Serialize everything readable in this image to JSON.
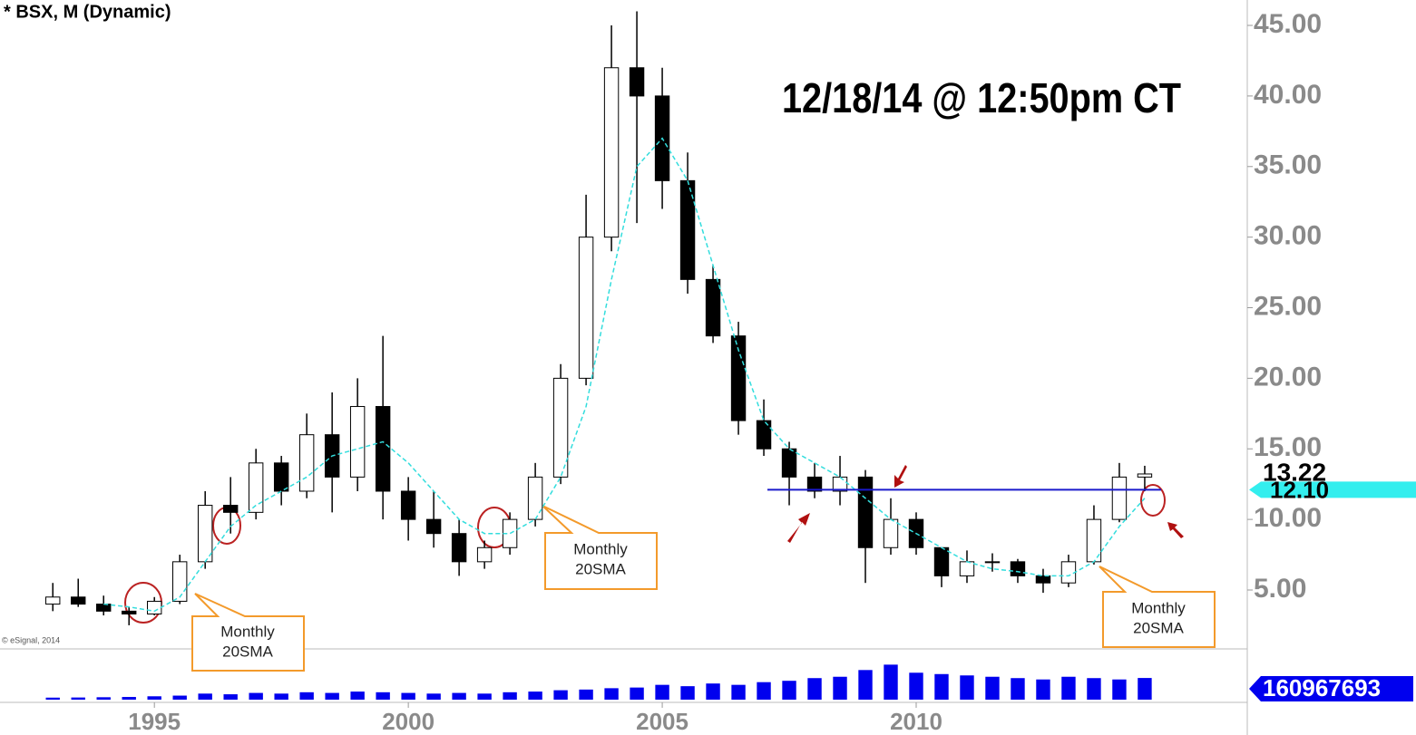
{
  "chart_data": {
    "type": "candlestick",
    "title": "* BSX, M (Dynamic)",
    "annotation": "12/18/14 @ 12:50pm CT",
    "credit": "© eSignal, 2014",
    "callouts": [
      [
        "Monthly",
        "20SMA"
      ],
      [
        "Monthly",
        "20SMA"
      ],
      [
        "Monthly",
        "20SMA"
      ]
    ],
    "x": [
      1993,
      1993.5,
      1994,
      1994.5,
      1995,
      1995.5,
      1996,
      1996.5,
      1997,
      1997.5,
      1998,
      1998.5,
      1999,
      1999.5,
      2000,
      2000.5,
      2001,
      2001.5,
      2002,
      2002.5,
      2003,
      2003.5,
      2004,
      2004.5,
      2005,
      2005.5,
      2006,
      2006.5,
      2007,
      2007.5,
      2008,
      2008.5,
      2009,
      2009.5,
      2010,
      2010.5,
      2011,
      2011.5,
      2012,
      2012.5,
      2013,
      2013.5,
      2014,
      2014.5
    ],
    "open": [
      4.0,
      4.5,
      4.0,
      3.5,
      3.3,
      4.2,
      7,
      11,
      10.5,
      14,
      12,
      16,
      13,
      18,
      12,
      10,
      9,
      7,
      8,
      10,
      13,
      20,
      30,
      42,
      40,
      34,
      27,
      23,
      17,
      15,
      13,
      12,
      13,
      8,
      10,
      8,
      6,
      7,
      7,
      6,
      5.5,
      7,
      10,
      13
    ],
    "high": [
      5.5,
      5.8,
      4.6,
      3.8,
      4.5,
      7.5,
      12,
      13,
      15,
      14.5,
      17.5,
      19,
      20,
      23,
      13,
      12,
      10,
      8.5,
      10.5,
      14,
      21,
      33,
      45,
      46,
      42,
      36,
      28,
      24,
      18.5,
      15.5,
      14,
      14.5,
      13.5,
      11.5,
      10.5,
      8,
      7.8,
      7.6,
      7.2,
      6.5,
      7.5,
      11,
      14,
      13.8
    ],
    "low": [
      3.5,
      3.8,
      3.2,
      2.5,
      3.2,
      4,
      6.5,
      9,
      10,
      11,
      11.5,
      10.5,
      12,
      10,
      8.5,
      8,
      6,
      6.5,
      7.5,
      9.5,
      12.5,
      19.5,
      29,
      31,
      32,
      26,
      22.5,
      16,
      14.5,
      11,
      11.5,
      11,
      5.5,
      7.5,
      7.5,
      5.2,
      5.5,
      6.3,
      5.5,
      4.8,
      5.2,
      6.8,
      9.8,
      12
    ],
    "close": [
      4.5,
      4.0,
      3.5,
      3.3,
      4.2,
      7,
      11,
      10.5,
      14,
      12,
      16,
      13,
      18,
      12,
      10,
      9,
      7,
      8,
      10,
      13,
      20,
      30,
      42,
      40,
      34,
      27,
      23,
      17,
      15,
      13,
      12,
      13,
      8,
      10,
      8,
      6,
      7,
      7,
      6,
      5.5,
      7,
      10,
      13,
      13.22
    ],
    "sma": {
      "color": "#33dddd",
      "values": [
        null,
        null,
        4.0,
        3.8,
        3.5,
        4.5,
        7,
        9.5,
        11,
        12,
        13,
        14.5,
        15,
        15.5,
        14,
        12,
        10,
        9,
        9,
        10,
        13,
        18,
        27,
        35,
        37,
        34,
        28,
        22,
        17,
        15,
        14,
        13,
        11.5,
        10,
        9,
        8,
        7,
        6.5,
        6.3,
        6,
        6,
        7,
        9.5,
        11.5
      ]
    },
    "support": {
      "value": 12.1,
      "label": "12.10",
      "color": "#1a1acc"
    },
    "last_price": 13.22,
    "xlim": [
      1991.96,
      2016.43
    ],
    "xticks": [
      1995,
      2000,
      2005,
      2010
    ],
    "ylim": [
      0.89,
      46.8
    ],
    "yticks": [
      {
        "value": 5,
        "label": "5.00"
      },
      {
        "value": 10,
        "label": "10.00"
      },
      {
        "value": 15,
        "label": "15.00"
      },
      {
        "value": 20,
        "label": "20.00"
      },
      {
        "value": 25,
        "label": "25.00"
      },
      {
        "value": 30,
        "label": "30.00"
      },
      {
        "value": 35,
        "label": "35.00"
      },
      {
        "value": 40,
        "label": "40.00"
      },
      {
        "value": 45,
        "label": "45.00"
      }
    ],
    "volume": {
      "color": "#0000ee",
      "ylim": [
        0,
        350000000
      ],
      "last": 160967693,
      "values": [
        15000000,
        16000000,
        18000000,
        20000000,
        25000000,
        30000000,
        45000000,
        40000000,
        50000000,
        45000000,
        55000000,
        50000000,
        60000000,
        55000000,
        50000000,
        45000000,
        50000000,
        45000000,
        55000000,
        60000000,
        70000000,
        75000000,
        85000000,
        90000000,
        110000000,
        100000000,
        120000000,
        110000000,
        130000000,
        140000000,
        160000000,
        170000000,
        220000000,
        260000000,
        200000000,
        190000000,
        180000000,
        170000000,
        160000000,
        150000000,
        170000000,
        160000000,
        150000000,
        160967693
      ]
    }
  }
}
